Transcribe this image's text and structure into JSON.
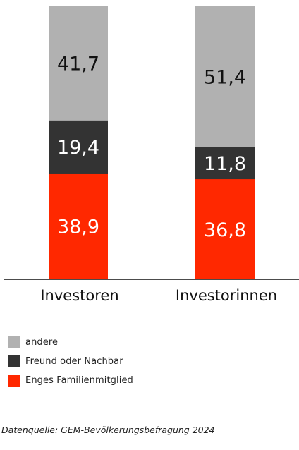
{
  "chart_data": {
    "type": "bar",
    "stacked": true,
    "categories": [
      "Investoren",
      "Investorinnen"
    ],
    "series": [
      {
        "name": "Enges Familienmitglied",
        "values": [
          38.9,
          36.8
        ],
        "color": "#ff2800"
      },
      {
        "name": "Freund oder Nachbar",
        "values": [
          19.4,
          11.8
        ],
        "color": "#333333"
      },
      {
        "name": "andere",
        "values": [
          41.7,
          51.4
        ],
        "color": "#b1b1b1"
      }
    ],
    "data_labels": [
      [
        "38,9",
        "36,8"
      ],
      [
        "19,4",
        "11,8"
      ],
      [
        "41,7",
        "51,4"
      ]
    ],
    "label_colors": [
      "#ffffff",
      "#ffffff",
      "#111111"
    ],
    "ylim": [
      0,
      100
    ],
    "grid": false,
    "legend_position": "bottom-left"
  },
  "legend": [
    {
      "label": "andere",
      "color": "#b1b1b1"
    },
    {
      "label": "Freund oder Nachbar",
      "color": "#333333"
    },
    {
      "label": "Enges Familienmitglied",
      "color": "#ff2800"
    }
  ],
  "source": "Datenquelle: GEM-Bevölkerungsbefragung 2024"
}
